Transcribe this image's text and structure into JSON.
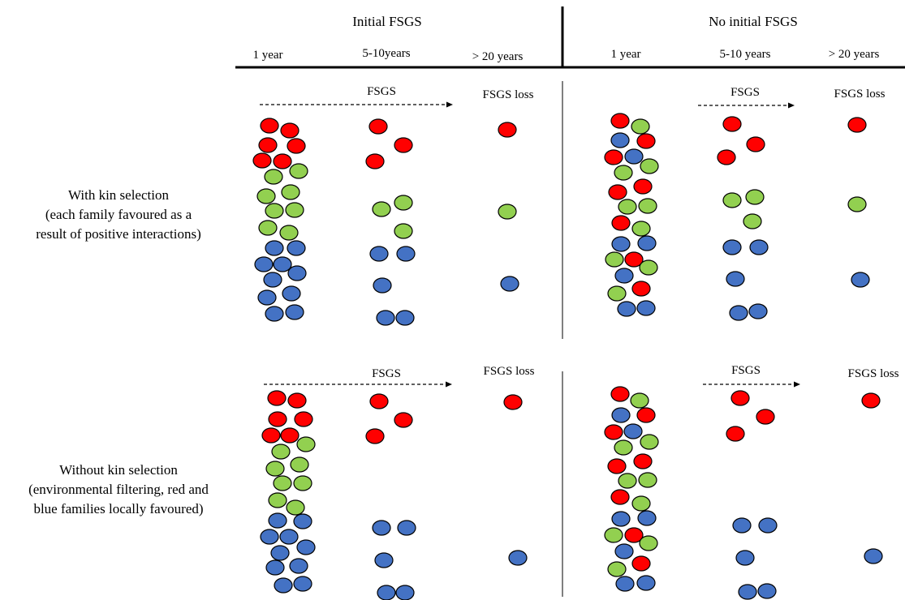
{
  "header": {
    "initial": "Initial FSGS",
    "no_initial": "No initial FSGS"
  },
  "columns": {
    "initial": [
      "1 year",
      "5-10years",
      "> 20 years"
    ],
    "no_initial": [
      "1 year",
      "5-10 years",
      "> 20 years"
    ]
  },
  "rows": {
    "with_kin": [
      "With kin selection",
      "(each family favoured as a",
      "result of positive interactions)"
    ],
    "without_kin": [
      "Without kin selection",
      "(environmental filtering, red and",
      "blue families locally favoured)"
    ]
  },
  "annotations": {
    "fsgs": "FSGS",
    "loss": "FSGS loss"
  },
  "colors": {
    "red": "#ff0000",
    "green": "#92d050",
    "blue": "#4472c4",
    "outline": "#000000"
  }
}
